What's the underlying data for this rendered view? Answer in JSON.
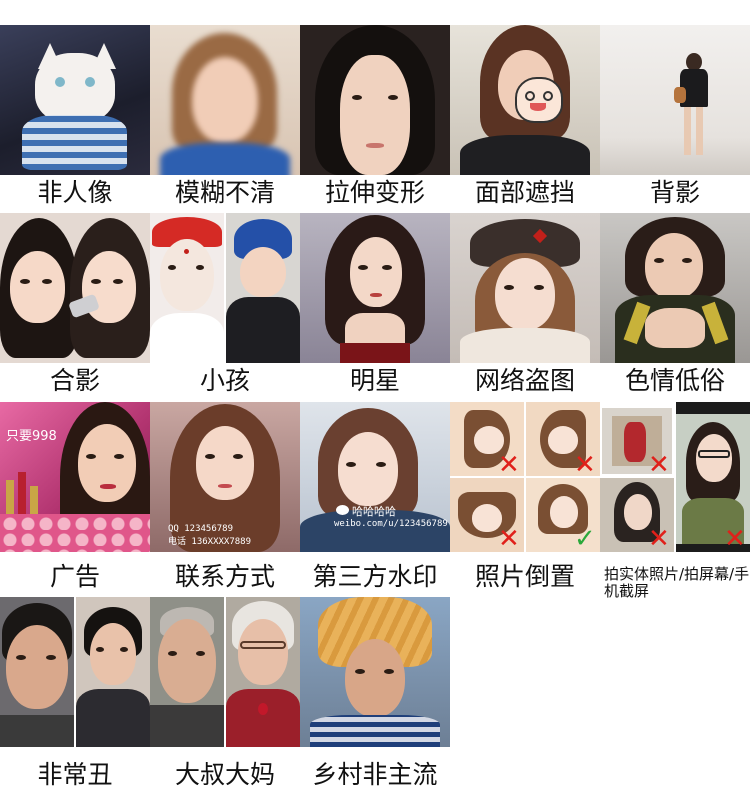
{
  "cells": [
    {
      "id": "non-portrait",
      "label": "非人像"
    },
    {
      "id": "blurry",
      "label": "模糊不清"
    },
    {
      "id": "stretched",
      "label": "拉伸变形"
    },
    {
      "id": "face-covered",
      "label": "面部遮挡"
    },
    {
      "id": "back-view",
      "label": "背影"
    },
    {
      "id": "group-photo",
      "label": "合影"
    },
    {
      "id": "child",
      "label": "小孩"
    },
    {
      "id": "celebrity",
      "label": "明星"
    },
    {
      "id": "internet-photo",
      "label": "网络盗图"
    },
    {
      "id": "vulgar",
      "label": "色情低俗"
    },
    {
      "id": "advertisement",
      "label": "广告"
    },
    {
      "id": "contact-info",
      "label": "联系方式"
    },
    {
      "id": "watermark",
      "label": "第三方水印"
    },
    {
      "id": "upside-down",
      "label": "照片倒置"
    },
    {
      "id": "screen-capture",
      "label": "拍实体照片/拍屏幕/手机截屏"
    },
    {
      "id": "very-ugly",
      "label": "非常丑"
    },
    {
      "id": "middle-aged",
      "label": "大叔大妈"
    },
    {
      "id": "rural-non-mainstream",
      "label": "乡村非主流"
    }
  ],
  "overlays": {
    "ad_text": "只要998",
    "contact_qq": "QQ  123456789",
    "contact_phone": "电话  136XXXX7889",
    "watermark_name": "哈哈哈哈",
    "watermark_url": "weibo.com/u/123456789"
  },
  "marks": {
    "wrong": "✕",
    "right": "✓"
  }
}
